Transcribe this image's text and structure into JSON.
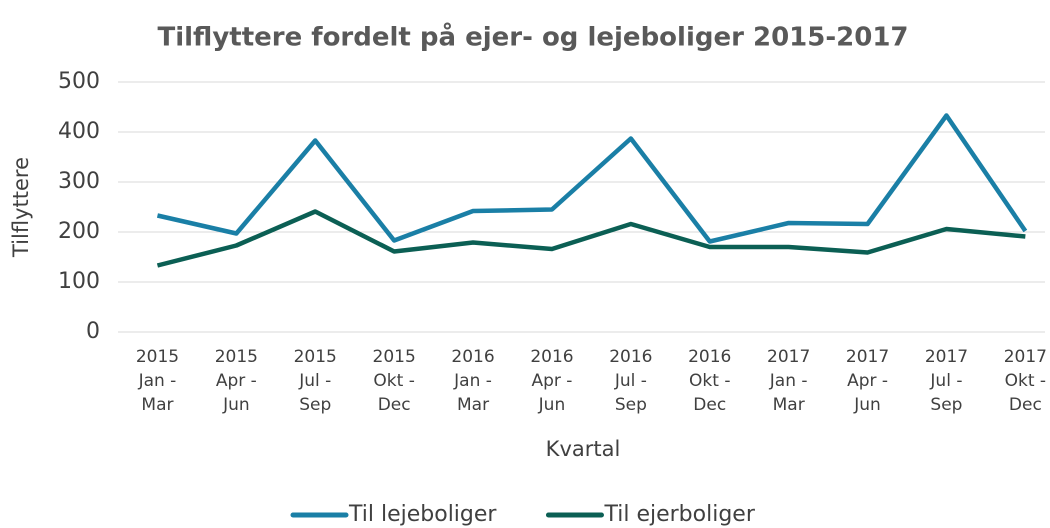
{
  "chart_data": {
    "type": "line",
    "title": "Tilflyttere fordelt på ejer- og lejeboliger 2015-2017",
    "x_label": "Kvartal",
    "y_label": "Tilflyttere",
    "categories": [
      [
        "2015",
        "Jan -",
        "Mar"
      ],
      [
        "2015",
        "Apr -",
        "Jun"
      ],
      [
        "2015",
        "Jul -",
        "Sep"
      ],
      [
        "2015",
        "Okt -",
        "Dec"
      ],
      [
        "2016",
        "Jan -",
        "Mar"
      ],
      [
        "2016",
        "Apr -",
        "Jun"
      ],
      [
        "2016",
        "Jul -",
        "Sep"
      ],
      [
        "2016",
        "Okt -",
        "Dec"
      ],
      [
        "2017",
        "Jan -",
        "Mar"
      ],
      [
        "2017",
        "Apr -",
        "Jun"
      ],
      [
        "2017",
        "Jul -",
        "Sep"
      ],
      [
        "2017",
        "Okt -",
        "Dec"
      ]
    ],
    "series": [
      {
        "name": "Til lejeboliger",
        "color": "#1a7fa6",
        "values": [
          233,
          197,
          383,
          183,
          242,
          245,
          387,
          181,
          218,
          216,
          433,
          202
        ]
      },
      {
        "name": "Til ejerboliger",
        "color": "#0b5f54",
        "values": [
          133,
          173,
          241,
          161,
          179,
          166,
          216,
          170,
          170,
          159,
          206,
          191
        ]
      }
    ],
    "ylim": [
      0,
      500
    ],
    "yticks": [
      0,
      100,
      200,
      300,
      400,
      500
    ],
    "grid": true,
    "legend": "bottom"
  }
}
